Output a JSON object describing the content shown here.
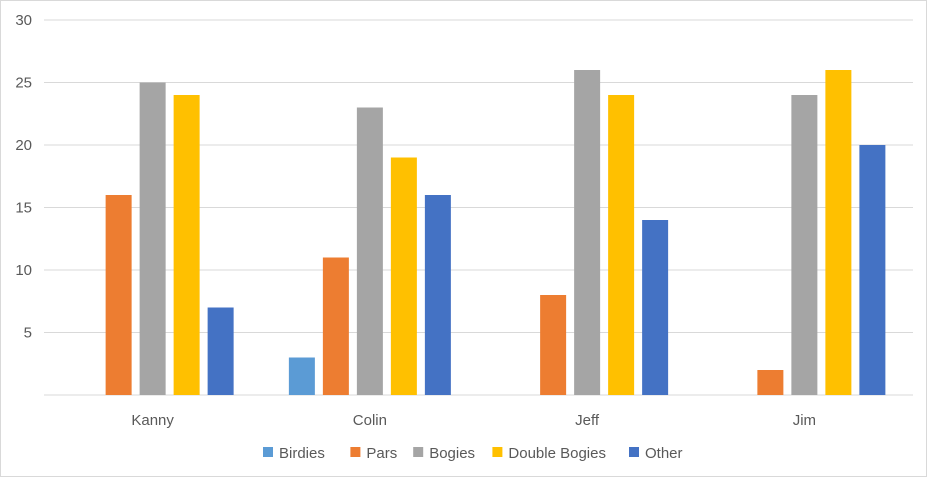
{
  "chart_data": {
    "type": "bar",
    "title": "",
    "xlabel": "",
    "ylabel": "",
    "categories": [
      "Kanny",
      "Colin",
      "Jeff",
      "Jim"
    ],
    "series": [
      {
        "name": "Birdies",
        "color": "#5b9bd5",
        "values": [
          0,
          3,
          0,
          0
        ]
      },
      {
        "name": "Pars",
        "color": "#ed7d31",
        "values": [
          16,
          11,
          8,
          2
        ]
      },
      {
        "name": "Bogies",
        "color": "#a5a5a5",
        "values": [
          25,
          23,
          26,
          24
        ]
      },
      {
        "name": "Double Bogies",
        "color": "#ffc000",
        "values": [
          24,
          19,
          24,
          26
        ]
      },
      {
        "name": "Other",
        "color": "#4472c4",
        "values": [
          7,
          16,
          14,
          20
        ]
      }
    ],
    "ylim": [
      0,
      30
    ],
    "yticks": [
      "5",
      "10",
      "15",
      "20",
      "25",
      "30"
    ],
    "grid": true,
    "legend_position": "bottom"
  }
}
